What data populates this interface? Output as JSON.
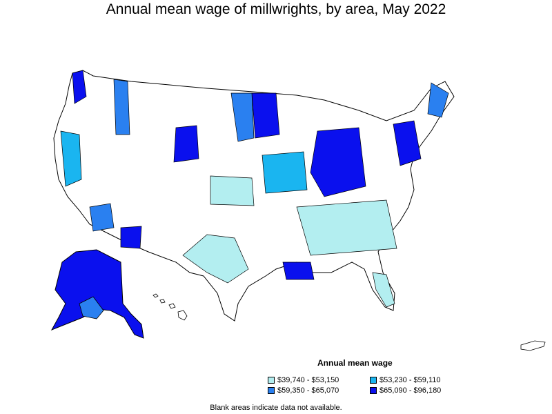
{
  "title": "Annual mean wage of millwrights, by area, May 2022",
  "legend": {
    "title": "Annual mean wage",
    "items": [
      {
        "label": "$39,740 - $53,150",
        "color": "#b3eef0"
      },
      {
        "label": "$53,230 - $59,110",
        "color": "#1ab5f0"
      },
      {
        "label": "$59,350 - $65,070",
        "color": "#2a80f0"
      },
      {
        "label": "$65,090 - $96,180",
        "color": "#0a10ee"
      }
    ]
  },
  "footnote": "Blank areas indicate data not available.",
  "colors": {
    "outline": "#000000",
    "blank": "#ffffff"
  }
}
